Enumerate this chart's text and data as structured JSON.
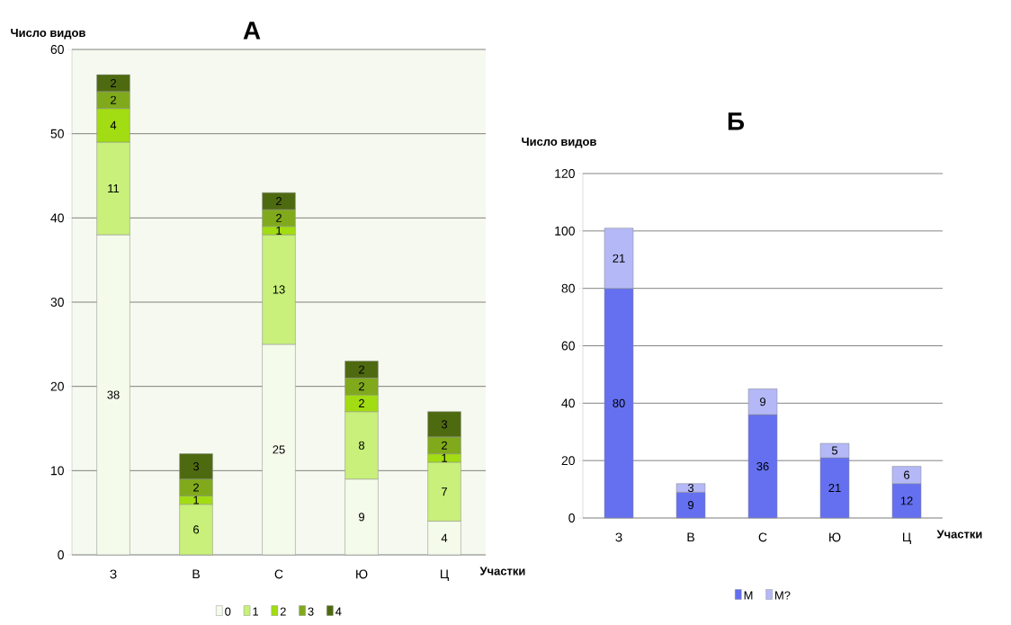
{
  "chart_data": [
    {
      "type": "bar",
      "title": "А",
      "ylabel": "Число видов",
      "xlabel": "Участки",
      "categories": [
        "З",
        "В",
        "С",
        "Ю",
        "Ц"
      ],
      "stacked": true,
      "data_labels": true,
      "grid": "y",
      "legend": "bottom",
      "ylim": [
        0,
        60
      ],
      "yticks": [
        0,
        10,
        20,
        30,
        40,
        50,
        60
      ],
      "series": [
        {
          "name": "0",
          "color": "#f4fbea",
          "values": [
            38,
            null,
            25,
            9,
            4
          ]
        },
        {
          "name": "1",
          "color": "#c8f07a",
          "values": [
            11,
            6,
            13,
            8,
            7
          ]
        },
        {
          "name": "2",
          "color": "#a2dc12",
          "values": [
            4,
            1,
            1,
            2,
            1
          ]
        },
        {
          "name": "3",
          "color": "#80aa1c",
          "values": [
            2,
            2,
            2,
            2,
            2
          ]
        },
        {
          "name": "4",
          "color": "#4e6a10",
          "values": [
            2,
            3,
            2,
            2,
            3
          ]
        }
      ]
    },
    {
      "type": "bar",
      "title": "Б",
      "ylabel": "Число видов",
      "xlabel": "Участки",
      "categories": [
        "З",
        "В",
        "С",
        "Ю",
        "Ц"
      ],
      "stacked": true,
      "data_labels": true,
      "grid": "y",
      "legend": "bottom",
      "ylim": [
        0,
        120
      ],
      "yticks": [
        0,
        20,
        40,
        60,
        80,
        100,
        120
      ],
      "series": [
        {
          "name": "М",
          "color": "#6470f0",
          "values": [
            80,
            9,
            36,
            21,
            12
          ]
        },
        {
          "name": "М?",
          "color": "#b4b8f6",
          "values": [
            21,
            3,
            9,
            5,
            6
          ]
        }
      ]
    }
  ]
}
